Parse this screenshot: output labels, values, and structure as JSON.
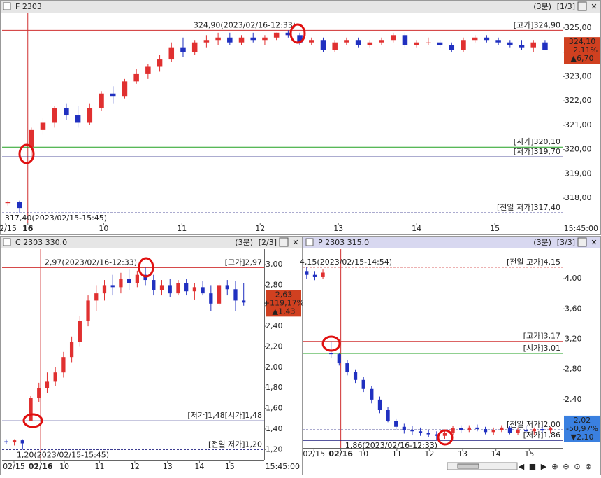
{
  "chart_data": [
    {
      "type": "candlestick",
      "title": "F 2303",
      "interval": "(3분)",
      "page": "[1/3]",
      "up_color": "#e03030",
      "down_color": "#2030c0",
      "open": [
        317.8,
        317.85,
        320.1,
        320.8,
        321.1,
        321.7,
        321.4,
        321.1,
        321.7,
        322.3,
        322.2,
        322.8,
        323.1,
        323.4,
        323.7,
        324.2,
        324.0,
        324.4,
        324.5,
        324.6,
        324.4,
        324.6,
        324.5,
        324.6,
        324.8,
        324.7,
        324.4,
        324.5,
        324.1,
        324.4,
        324.5,
        324.3,
        324.4,
        324.5,
        324.7,
        324.3,
        324.4,
        324.4,
        324.3,
        324.1,
        324.5,
        324.6,
        324.5,
        324.4,
        324.3,
        324.2,
        324.4
      ],
      "high": [
        317.9,
        317.9,
        320.9,
        321.3,
        321.8,
        321.9,
        321.8,
        321.9,
        322.4,
        322.6,
        322.9,
        323.3,
        323.5,
        323.9,
        324.4,
        324.6,
        324.5,
        324.7,
        324.8,
        324.8,
        324.7,
        324.8,
        324.7,
        324.8,
        324.9,
        324.8,
        324.6,
        324.6,
        324.5,
        324.6,
        324.6,
        324.5,
        324.6,
        324.8,
        324.8,
        324.5,
        324.6,
        324.5,
        324.4,
        324.6,
        324.7,
        324.7,
        324.6,
        324.5,
        324.5,
        324.5,
        324.5
      ],
      "low": [
        317.7,
        317.4,
        319.7,
        320.6,
        320.9,
        321.2,
        320.9,
        321.0,
        321.6,
        321.9,
        322.1,
        322.7,
        322.9,
        323.2,
        323.6,
        323.8,
        323.9,
        324.2,
        324.3,
        324.3,
        324.3,
        324.4,
        324.3,
        324.5,
        324.6,
        324.3,
        324.3,
        324.0,
        324.0,
        324.3,
        324.2,
        324.2,
        324.3,
        324.4,
        324.2,
        324.2,
        324.3,
        324.2,
        324.0,
        324.0,
        324.4,
        324.4,
        324.3,
        324.2,
        324.1,
        324.0,
        324.1
      ],
      "close": [
        317.85,
        317.6,
        320.8,
        321.1,
        321.7,
        321.4,
        321.1,
        321.7,
        322.3,
        322.2,
        322.8,
        323.1,
        323.4,
        323.7,
        324.2,
        324.0,
        324.4,
        324.5,
        324.6,
        324.4,
        324.6,
        324.5,
        324.6,
        324.8,
        324.7,
        324.4,
        324.5,
        324.1,
        324.4,
        324.5,
        324.3,
        324.4,
        324.5,
        324.7,
        324.3,
        324.4,
        324.4,
        324.3,
        324.1,
        324.5,
        324.6,
        324.5,
        324.4,
        324.3,
        324.2,
        324.4,
        324.1
      ],
      "xlim": [
        0,
        48
      ],
      "xticks": [
        {
          "value": 0.3,
          "label": "02/15"
        },
        {
          "value": 2.2,
          "label": "16"
        },
        {
          "value": 8.7,
          "label": "10"
        },
        {
          "value": 15.4,
          "label": "11"
        },
        {
          "value": 22.1,
          "label": "12"
        },
        {
          "value": 28.8,
          "label": "13"
        },
        {
          "value": 35.5,
          "label": "14"
        },
        {
          "value": 42.2,
          "label": "15"
        }
      ],
      "end_time": "15:45:00",
      "ylim": [
        317.0,
        325.6
      ],
      "yticks": [
        {
          "value": 325,
          "label": "325,00"
        },
        {
          "value": 324,
          "label": "324,00"
        },
        {
          "value": 323,
          "label": "323,00"
        },
        {
          "value": 322,
          "label": "322,00"
        },
        {
          "value": 321,
          "label": "321,00"
        },
        {
          "value": 320,
          "label": "320,00"
        },
        {
          "value": 319,
          "label": "319,00"
        },
        {
          "value": 318,
          "label": "318,00"
        }
      ],
      "levels": [
        {
          "label": "[고가]324,90",
          "value": 324.9,
          "color": "#d03030",
          "dashed": false
        },
        {
          "label": "[시가]320,10",
          "value": 320.1,
          "color": "#20a020",
          "dashed": false
        },
        {
          "label": "[저가]319,70",
          "value": 319.7,
          "color": "#202080",
          "dashed": false
        },
        {
          "label": "[전일 저가]317,40",
          "value": 317.4,
          "color": "#202080",
          "dashed": true
        }
      ],
      "annotations": [
        {
          "text": "324,90(2023/02/16-12:33)",
          "value": 324.9
        },
        {
          "text": "317,40(2023/02/15-15:45)",
          "value": 317.4
        }
      ],
      "price_box": {
        "color": "#d04020",
        "lines": [
          "324,10",
          "+2,11%",
          "▲6,70"
        ]
      }
    },
    {
      "type": "candlestick",
      "title": "C 2303 330.0",
      "interval": "(3분)",
      "page": "[2/3]",
      "up_color": "#e03030",
      "down_color": "#2030c0",
      "open": [
        1.28,
        1.27,
        1.29,
        1.48,
        1.7,
        1.8,
        1.86,
        1.95,
        2.1,
        2.25,
        2.45,
        2.65,
        2.72,
        2.8,
        2.78,
        2.86,
        2.82,
        2.9,
        2.85,
        2.75,
        2.8,
        2.72,
        2.82,
        2.74,
        2.78,
        2.72,
        2.62,
        2.8,
        2.76,
        2.65
      ],
      "high": [
        1.3,
        1.3,
        1.3,
        1.72,
        1.85,
        1.95,
        2.0,
        2.15,
        2.3,
        2.5,
        2.7,
        2.8,
        2.85,
        2.9,
        2.92,
        2.95,
        2.94,
        2.97,
        2.9,
        2.85,
        2.86,
        2.85,
        2.86,
        2.82,
        2.84,
        2.8,
        2.82,
        2.85,
        2.84,
        2.82
      ],
      "low": [
        1.25,
        1.24,
        1.2,
        1.48,
        1.66,
        1.75,
        1.82,
        1.9,
        2.05,
        2.2,
        2.4,
        2.55,
        2.65,
        2.7,
        2.72,
        2.75,
        2.78,
        2.8,
        2.7,
        2.7,
        2.68,
        2.7,
        2.7,
        2.66,
        2.7,
        2.55,
        2.6,
        2.7,
        2.55,
        2.6
      ],
      "close": [
        1.27,
        1.29,
        1.26,
        1.7,
        1.8,
        1.86,
        1.95,
        2.1,
        2.25,
        2.45,
        2.65,
        2.72,
        2.8,
        2.78,
        2.86,
        2.82,
        2.9,
        2.85,
        2.75,
        2.8,
        2.72,
        2.82,
        2.74,
        2.78,
        2.72,
        2.62,
        2.8,
        2.76,
        2.65,
        2.63
      ],
      "xlim": [
        0,
        32
      ],
      "xticks": [
        {
          "value": 1.45,
          "label": "02/15"
        },
        {
          "value": 4.7,
          "label": "02/16"
        },
        {
          "value": 7.6,
          "label": "10"
        },
        {
          "value": 11.9,
          "label": "11"
        },
        {
          "value": 16.2,
          "label": "12"
        },
        {
          "value": 20.2,
          "label": "13"
        },
        {
          "value": 24.1,
          "label": "14"
        },
        {
          "value": 27.8,
          "label": "15"
        }
      ],
      "end_time": "15:45:00",
      "ylim": [
        1.1,
        3.15
      ],
      "yticks": [
        {
          "value": 3.0,
          "label": "3,00"
        },
        {
          "value": 2.8,
          "label": "2,80"
        },
        {
          "value": 2.6,
          "label": "2,60"
        },
        {
          "value": 2.4,
          "label": "2,40"
        },
        {
          "value": 2.2,
          "label": "2,20"
        },
        {
          "value": 2.0,
          "label": "2,00"
        },
        {
          "value": 1.8,
          "label": "1,80"
        },
        {
          "value": 1.6,
          "label": "1,60"
        },
        {
          "value": 1.4,
          "label": "1,40"
        },
        {
          "value": 1.2,
          "label": "1,20"
        }
      ],
      "levels": [
        {
          "label": "[고가]2,97",
          "value": 2.97,
          "color": "#d03030",
          "dashed": false
        },
        {
          "label": "[저가]1,48[시가]1,48",
          "value": 1.48,
          "color": "#202080",
          "dashed": false
        },
        {
          "label": "[전일 저가]1,20",
          "value": 1.2,
          "color": "#202080",
          "dashed": true
        }
      ],
      "annotations": [
        {
          "text": "2,97(2023/02/16-12:33)",
          "value": 2.97
        },
        {
          "text": "1,20(2023/02/15-15:45)",
          "value": 1.2
        }
      ],
      "price_box": {
        "color": "#d04020",
        "lines": [
          "2,63",
          "+119,17%",
          "▲1,43"
        ]
      }
    },
    {
      "type": "candlestick",
      "title": "P 2303 315.0",
      "interval": "(3분)",
      "page": "[3/3]",
      "up_color": "#e03030",
      "down_color": "#2030c0",
      "open": [
        4.1,
        4.05,
        4.02,
        3.01,
        3.0,
        2.88,
        2.76,
        2.66,
        2.54,
        2.4,
        2.26,
        2.12,
        2.04,
        2.0,
        1.98,
        1.96,
        1.94,
        1.92,
        1.96,
        2.02,
        2.0,
        2.03,
        2.01,
        1.97,
        2.0,
        2.03,
        1.96,
        2.0,
        1.98,
        2.01,
        1.99
      ],
      "high": [
        4.15,
        4.1,
        4.12,
        3.17,
        3.02,
        2.92,
        2.8,
        2.7,
        2.58,
        2.44,
        2.3,
        2.15,
        2.08,
        2.05,
        2.03,
        2.0,
        1.98,
        1.98,
        2.05,
        2.06,
        2.06,
        2.07,
        2.04,
        2.03,
        2.06,
        2.05,
        2.03,
        2.05,
        2.03,
        2.04,
        2.04
      ],
      "low": [
        4.0,
        3.98,
        4.0,
        2.95,
        2.85,
        2.72,
        2.62,
        2.5,
        2.35,
        2.22,
        2.1,
        2.0,
        1.95,
        1.93,
        1.92,
        1.9,
        1.86,
        1.88,
        1.93,
        1.96,
        1.97,
        1.98,
        1.94,
        1.93,
        1.97,
        1.94,
        1.93,
        1.95,
        1.93,
        1.96,
        1.95
      ],
      "close": [
        4.05,
        4.02,
        4.08,
        3.0,
        2.88,
        2.76,
        2.66,
        2.54,
        2.4,
        2.26,
        2.12,
        2.04,
        2.0,
        1.98,
        1.96,
        1.94,
        1.92,
        1.96,
        2.02,
        2.0,
        2.03,
        2.01,
        1.97,
        2.0,
        2.03,
        1.96,
        2.0,
        1.98,
        2.01,
        1.99,
        2.02
      ],
      "xlim": [
        0,
        32
      ],
      "xticks": [
        {
          "value": 1.4,
          "label": "02/15"
        },
        {
          "value": 4.7,
          "label": "02/16"
        },
        {
          "value": 7.5,
          "label": "10"
        },
        {
          "value": 11.6,
          "label": "11"
        },
        {
          "value": 15.6,
          "label": "12"
        },
        {
          "value": 19.7,
          "label": "13"
        },
        {
          "value": 23.8,
          "label": "14"
        },
        {
          "value": 27.9,
          "label": "15"
        }
      ],
      "ylim": [
        1.76,
        4.39
      ],
      "yticks": [
        {
          "value": 4.0,
          "label": "4,00"
        },
        {
          "value": 3.6,
          "label": "3,60"
        },
        {
          "value": 3.2,
          "label": "3,20"
        },
        {
          "value": 2.8,
          "label": "2,80"
        },
        {
          "value": 2.4,
          "label": "2,40"
        }
      ],
      "levels": [
        {
          "label": "[전일 고가]4,15",
          "value": 4.15,
          "color": "#d03030",
          "dashed": true
        },
        {
          "label": "[고가]3,17",
          "value": 3.17,
          "color": "#d03030",
          "dashed": false
        },
        {
          "label": "[시가]3,01",
          "value": 3.01,
          "color": "#20a020",
          "dashed": false
        },
        {
          "label": "[전일 저가]2,00",
          "value": 2.0,
          "color": "#202080",
          "dashed": true
        },
        {
          "label": "[저가]1,86",
          "value": 1.86,
          "color": "#202080",
          "dashed": false
        }
      ],
      "annotations": [
        {
          "text": "4,15(2023/02/15-14:54)",
          "value": 4.15
        },
        {
          "text": "1,86(2023/02/16-12:33)",
          "value": 1.86
        }
      ],
      "price_box": {
        "color": "#3a80e0",
        "lines": [
          "2,02",
          "-50,97%",
          "▼2,10"
        ]
      }
    }
  ]
}
